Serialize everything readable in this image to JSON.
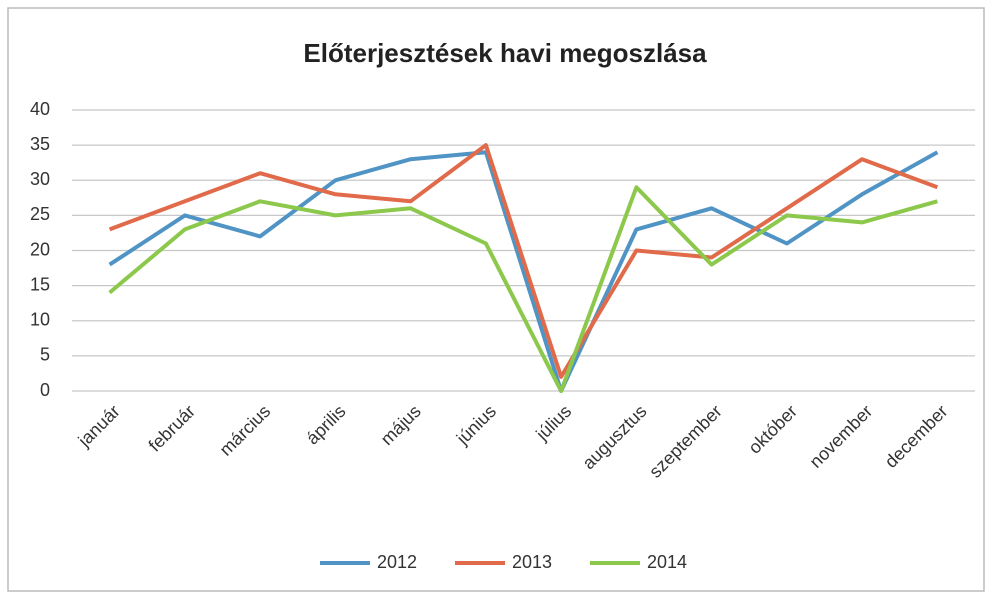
{
  "chart_data": {
    "type": "line",
    "title": "Előterjesztések havi megoszlása",
    "categories": [
      "január",
      "február",
      "március",
      "április",
      "május",
      "június",
      "július",
      "augusztus",
      "szeptember",
      "október",
      "november",
      "december"
    ],
    "series": [
      {
        "name": "2012",
        "color": "#4f94c4",
        "values": [
          18,
          25,
          22,
          30,
          33,
          34,
          0,
          23,
          26,
          21,
          28,
          34
        ]
      },
      {
        "name": "2013",
        "color": "#e06a4a",
        "values": [
          23,
          27,
          31,
          28,
          27,
          35,
          2,
          20,
          19,
          26,
          33,
          29
        ]
      },
      {
        "name": "2014",
        "color": "#8cc84b",
        "values": [
          14,
          23,
          27,
          25,
          26,
          21,
          0,
          29,
          18,
          25,
          24,
          27
        ]
      }
    ],
    "ylim": [
      0,
      40
    ],
    "yticks": [
      0,
      5,
      10,
      15,
      20,
      25,
      30,
      35,
      40
    ],
    "grid": true,
    "legend": "bottom"
  }
}
